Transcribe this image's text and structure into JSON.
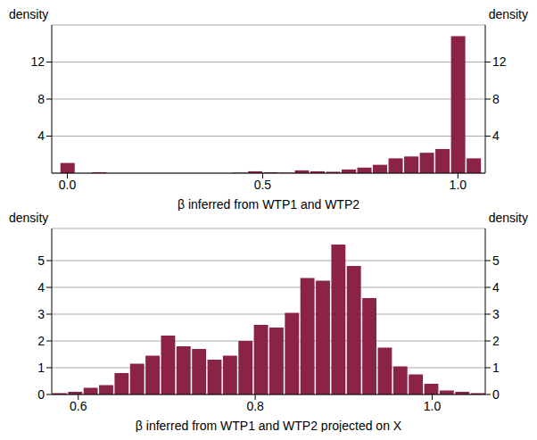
{
  "chart_data": [
    {
      "type": "histogram",
      "xlabel": "β inferred from WTP1 and WTP2",
      "ylabel": "density",
      "color": "#8b2346",
      "grid": true,
      "bins": [
        -0.02,
        0.02,
        0.06,
        0.1,
        0.14,
        0.18,
        0.22,
        0.26,
        0.3,
        0.34,
        0.38,
        0.42,
        0.46,
        0.5,
        0.54,
        0.58,
        0.62,
        0.66,
        0.7,
        0.74,
        0.78,
        0.82,
        0.86,
        0.9,
        0.94,
        0.98,
        1.02,
        1.06
      ],
      "values": [
        1.1,
        0,
        0.1,
        0,
        0,
        0,
        0,
        0,
        0,
        0,
        0,
        0.05,
        0.2,
        0.1,
        0.05,
        0.3,
        0.2,
        0.15,
        0.4,
        0.6,
        0.9,
        1.6,
        1.8,
        2.2,
        2.6,
        14.8,
        1.6
      ],
      "xlim": [
        -0.04,
        1.07
      ],
      "xticks": [
        {
          "value": 0,
          "label": "0.0"
        },
        0.5,
        {
          "value": 1,
          "label": "1.0"
        }
      ],
      "ylim": [
        0,
        16
      ],
      "yticks": [
        4,
        8,
        12
      ]
    },
    {
      "type": "histogram",
      "xlabel": "β inferred from WTP1 and WTP2 projected on X",
      "ylabel": "density",
      "color": "#8b2346",
      "grid": true,
      "bins": [
        0.57,
        0.5875,
        0.605,
        0.6225,
        0.64,
        0.6575,
        0.675,
        0.6925,
        0.71,
        0.7275,
        0.745,
        0.7625,
        0.78,
        0.7975,
        0.815,
        0.8325,
        0.85,
        0.8675,
        0.885,
        0.9025,
        0.92,
        0.9375,
        0.955,
        0.9725,
        0.99,
        1.0075,
        1.025,
        1.0425,
        1.06
      ],
      "values": [
        0.05,
        0.1,
        0.25,
        0.35,
        0.8,
        1.15,
        1.45,
        2.2,
        1.8,
        1.7,
        1.3,
        1.45,
        2.0,
        2.6,
        2.5,
        3.05,
        4.35,
        4.25,
        5.6,
        4.8,
        3.6,
        1.75,
        1.05,
        0.75,
        0.4,
        0.15,
        0.1,
        0.05
      ],
      "xlim": [
        0.57,
        1.06
      ],
      "xticks": [
        0.6,
        0.8,
        {
          "value": 1,
          "label": "1.0"
        }
      ],
      "ylim": [
        0,
        6.2
      ],
      "yticks": [
        0,
        1,
        2,
        3,
        4,
        5
      ]
    }
  ]
}
